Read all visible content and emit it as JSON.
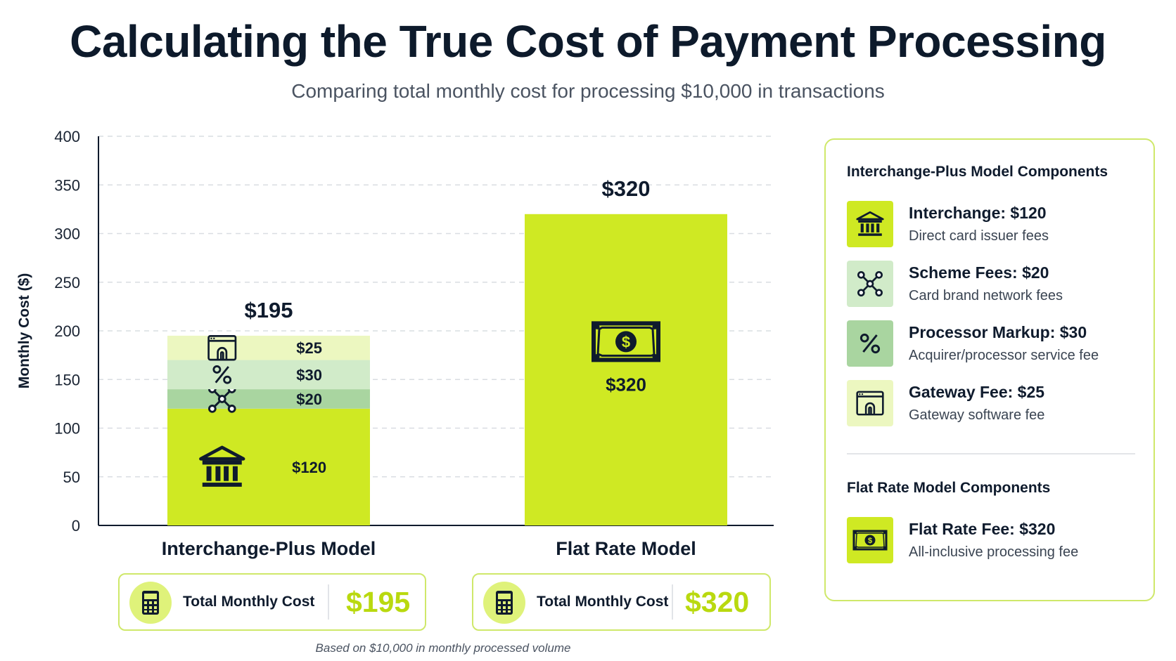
{
  "title": "Calculating the True Cost of Payment Processing",
  "subtitle": "Comparing total monthly cost for processing $10,000 in transactions",
  "colors": {
    "interchange": "#cfe923",
    "scheme": "#a9d5a0",
    "processor": "#d1ebc9",
    "gateway": "#ecf7c0",
    "flat": "#cfe923",
    "accent_text": "#b9d90f",
    "card_border": "#cfe86a"
  },
  "chart_data": {
    "type": "bar",
    "stacked": true,
    "ylabel": "Monthly Cost ($)",
    "ylim": [
      0,
      400
    ],
    "yticks": [
      0,
      50,
      100,
      150,
      200,
      250,
      300,
      350,
      400
    ],
    "grid": true,
    "categories": [
      "Interchange-Plus Model",
      "Flat Rate Model"
    ],
    "totals": [
      195,
      320
    ],
    "total_labels": [
      "$195",
      "$320"
    ],
    "series": [
      {
        "name": "Interchange",
        "values": [
          120,
          0
        ],
        "labels": [
          "$120",
          ""
        ],
        "icon": "bank-icon",
        "color": "#cfe923"
      },
      {
        "name": "Scheme Fees",
        "values": [
          20,
          0
        ],
        "labels": [
          "$20",
          ""
        ],
        "icon": "network-icon",
        "color": "#a9d5a0"
      },
      {
        "name": "Processor Markup",
        "values": [
          30,
          0
        ],
        "labels": [
          "$30",
          ""
        ],
        "icon": "percent-icon",
        "color": "#d1ebc9"
      },
      {
        "name": "Gateway Fee",
        "values": [
          25,
          0
        ],
        "labels": [
          "$25",
          ""
        ],
        "icon": "browser-gateway-icon",
        "color": "#ecf7c0"
      },
      {
        "name": "Flat Rate Fee",
        "values": [
          0,
          320
        ],
        "labels": [
          "",
          "$320"
        ],
        "icon": "money-bill-icon",
        "color": "#cfe923"
      }
    ]
  },
  "totals": [
    {
      "label": "Total Monthly Cost",
      "value": "$195",
      "icon": "calculator-icon"
    },
    {
      "label": "Total Monthly Cost",
      "value": "$320",
      "icon": "calculator-icon"
    }
  ],
  "footnote": "Based on $10,000 in monthly processed volume",
  "legend": {
    "interchange_plus_title": "Interchange-Plus Model Components",
    "interchange_plus_items": [
      {
        "title": "Interchange: $120",
        "desc": "Direct card issuer fees",
        "icon": "bank-icon"
      },
      {
        "title": "Scheme Fees: $20",
        "desc": "Card brand network fees",
        "icon": "network-icon"
      },
      {
        "title": "Processor Markup: $30",
        "desc": "Acquirer/processor service fee",
        "icon": "percent-icon"
      },
      {
        "title": "Gateway Fee: $25",
        "desc": "Gateway software fee",
        "icon": "browser-gateway-icon"
      }
    ],
    "flat_rate_title": "Flat Rate Model Components",
    "flat_rate_items": [
      {
        "title": "Flat Rate Fee: $320",
        "desc": "All-inclusive processing fee",
        "icon": "money-bill-icon"
      }
    ]
  }
}
